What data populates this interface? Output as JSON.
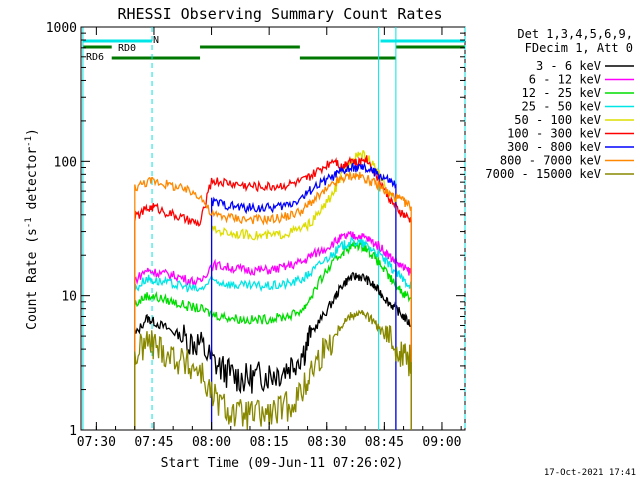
{
  "chart_data": {
    "type": "line",
    "title": "RHESSI Observing Summary Count Rates",
    "xlabel": "Start Time (09-Jun-11 07:26:02)",
    "ylabel_main": "Count Rate (s",
    "ylabel_sup1": "-1",
    "ylabel_mid": " detector",
    "ylabel_sup2": "-1",
    "ylabel_end": ")",
    "date_stamp": "17-Oct-2021 17:41",
    "x_axis": {
      "start": "07:26",
      "end": "09:06",
      "tick_labels": [
        "07:30",
        "07:45",
        "08:00",
        "08:15",
        "08:30",
        "08:45",
        "09:00"
      ],
      "tick_values_min": [
        4,
        19,
        34,
        49,
        64,
        79,
        94
      ]
    },
    "y_axis": {
      "scale": "log",
      "ylim": [
        1,
        1000
      ],
      "tick_labels": [
        "1",
        "10",
        "100",
        "1000"
      ],
      "tick_values": [
        1,
        10,
        100,
        1000
      ]
    },
    "legend": {
      "placement": "right",
      "header": [
        "Det 1,3,4,5,6,9,",
        "FDecim 1, Att 0"
      ]
    },
    "flags": [
      {
        "label": "RD0",
        "color": "#007700"
      },
      {
        "label": "RD6",
        "color": "#007700"
      },
      {
        "label": "N",
        "color": "#00e5e5"
      }
    ],
    "series": [
      {
        "name": "3 - 6 keV",
        "color": "#000000",
        "x": [
          14,
          17,
          19,
          22,
          25,
          28,
          31,
          34,
          37,
          40,
          43,
          46,
          49,
          52,
          55,
          58,
          60,
          63,
          66,
          68,
          70,
          72,
          74,
          76,
          78,
          80,
          82,
          84,
          86
        ],
        "values": [
          5.0,
          6.8,
          6.4,
          5.8,
          5.2,
          4.6,
          4.4,
          3.3,
          2.8,
          2.5,
          2.4,
          2.5,
          2.6,
          2.7,
          3.1,
          3.8,
          5.3,
          7.0,
          9.5,
          12.0,
          13.5,
          14.0,
          13.5,
          12.0,
          10.5,
          9.0,
          8.0,
          7.0,
          6.0
        ]
      },
      {
        "name": "6 - 12 keV",
        "color": "#ff00ff",
        "x": [
          14,
          17,
          19,
          22,
          25,
          28,
          31,
          34,
          37,
          40,
          43,
          46,
          49,
          52,
          55,
          58,
          60,
          63,
          66,
          68,
          70,
          72,
          74,
          76,
          78,
          80,
          82,
          84,
          86
        ],
        "values": [
          13.0,
          15.5,
          15.0,
          14.5,
          14.0,
          13.0,
          12.5,
          17.0,
          16.5,
          16.0,
          15.5,
          15.5,
          15.5,
          16.0,
          17.0,
          18.0,
          20.0,
          22.0,
          25.0,
          27.0,
          28.0,
          28.0,
          27.0,
          25.0,
          23.0,
          20.0,
          18.0,
          16.0,
          15.0
        ]
      },
      {
        "name": "12 - 25 keV",
        "color": "#00dd00",
        "x": [
          14,
          17,
          19,
          22,
          25,
          28,
          31,
          34,
          37,
          40,
          43,
          46,
          49,
          52,
          55,
          58,
          60,
          63,
          66,
          68,
          70,
          72,
          74,
          76,
          78,
          80,
          82,
          84,
          86
        ],
        "values": [
          8.5,
          10.0,
          9.8,
          9.3,
          8.8,
          8.3,
          8.0,
          7.3,
          7.0,
          6.8,
          6.6,
          6.6,
          6.7,
          6.9,
          7.2,
          8.0,
          10.0,
          14.0,
          18.0,
          21.0,
          23.0,
          24.0,
          23.0,
          20.0,
          17.0,
          14.0,
          12.0,
          10.5,
          9.5
        ]
      },
      {
        "name": "25 - 50 keV",
        "color": "#00e5e5",
        "x": [
          14,
          17,
          19,
          22,
          25,
          28,
          31,
          34,
          37,
          40,
          43,
          46,
          49,
          52,
          55,
          58,
          60,
          63,
          66,
          68,
          70,
          72,
          74,
          76,
          78,
          80,
          82,
          84,
          86
        ],
        "values": [
          11.0,
          13.5,
          13.0,
          12.5,
          12.0,
          11.5,
          11.0,
          13.0,
          12.5,
          12.0,
          11.8,
          11.8,
          11.8,
          12.0,
          12.5,
          13.5,
          15.0,
          18.0,
          21.0,
          23.5,
          25.0,
          25.0,
          24.0,
          22.0,
          20.0,
          17.0,
          15.0,
          13.0,
          12.0
        ]
      },
      {
        "name": "50 - 100 keV",
        "color": "#dddd00",
        "x": [
          34,
          37,
          40,
          43,
          46,
          49,
          52,
          55,
          58,
          60,
          63,
          66,
          68,
          70,
          72,
          74,
          76,
          78,
          80,
          82
        ],
        "values": [
          31.0,
          30.0,
          29.0,
          28.5,
          28.0,
          28.0,
          28.5,
          30.0,
          32.0,
          35.0,
          45.0,
          60.0,
          80.0,
          100.0,
          115.0,
          110.0,
          95.0,
          75.0,
          60.0,
          50.0
        ]
      },
      {
        "name": "100 - 300 keV",
        "color": "#ff0000",
        "x": [
          14,
          17,
          19,
          22,
          25,
          28,
          31,
          34,
          37,
          40,
          43,
          46,
          49,
          52,
          55,
          58,
          60,
          63,
          66,
          68,
          70,
          72,
          74,
          76,
          78,
          80,
          82,
          84,
          86
        ],
        "values": [
          38.0,
          44.0,
          46.0,
          42.0,
          39.0,
          36.0,
          34.0,
          72.0,
          70.0,
          68.0,
          66.0,
          65.0,
          65.0,
          66.0,
          68.0,
          72.0,
          78.0,
          90.0,
          105.0,
          90.0,
          105.0,
          95.0,
          108.0,
          88.0,
          70.0,
          55.0,
          45.0,
          40.0,
          36.0
        ]
      },
      {
        "name": "300 - 800 keV",
        "color": "#0000ff",
        "x": [
          34,
          37,
          40,
          43,
          46,
          49,
          52,
          55,
          58,
          60,
          63,
          66,
          68,
          70,
          72,
          74,
          76,
          78,
          80,
          82
        ],
        "values": [
          50.0,
          48.0,
          46.0,
          45.0,
          45.0,
          45.0,
          46.0,
          49.0,
          55.0,
          62.0,
          70.0,
          78.0,
          84.0,
          88.0,
          90.0,
          88.0,
          84.0,
          78.0,
          72.0,
          66.0
        ]
      },
      {
        "name": "800 - 7000 keV",
        "color": "#ff8800",
        "x": [
          14,
          17,
          19,
          22,
          25,
          28,
          31,
          34,
          37,
          40,
          43,
          46,
          49,
          52,
          55,
          58,
          60,
          63,
          66,
          68,
          70,
          72,
          74,
          76,
          78,
          80,
          82,
          84,
          86
        ],
        "values": [
          64.0,
          70.0,
          72.0,
          68.0,
          64.0,
          60.0,
          56.0,
          40.0,
          39.0,
          38.0,
          37.0,
          37.0,
          37.0,
          38.0,
          40.0,
          44.0,
          50.0,
          58.0,
          68.0,
          74.0,
          78.0,
          78.0,
          75.0,
          70.0,
          64.0,
          58.0,
          54.0,
          50.0,
          46.0
        ]
      },
      {
        "name": "7000 - 15000 keV",
        "color": "#888800",
        "x": [
          14,
          17,
          19,
          22,
          25,
          28,
          31,
          34,
          37,
          40,
          43,
          46,
          49,
          52,
          55,
          58,
          60,
          63,
          66,
          68,
          70,
          72,
          74,
          76,
          78,
          80,
          82,
          84,
          86
        ],
        "values": [
          3.5,
          4.5,
          4.3,
          3.8,
          3.4,
          3.0,
          2.8,
          1.8,
          1.5,
          1.3,
          1.3,
          1.3,
          1.3,
          1.4,
          1.6,
          2.0,
          2.8,
          3.8,
          5.0,
          6.2,
          7.0,
          7.5,
          7.2,
          6.5,
          5.5,
          4.8,
          4.2,
          3.6,
          3.2
        ]
      }
    ]
  }
}
